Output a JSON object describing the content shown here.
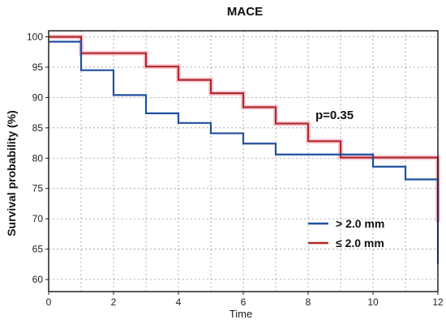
{
  "chart_data": {
    "type": "line",
    "title": "MACE",
    "xlabel": "Time",
    "ylabel": "Survival probability (%)",
    "xlim": [
      0,
      12
    ],
    "ylim": [
      58,
      101
    ],
    "x_ticks": [
      "0",
      "2",
      "4",
      "6",
      "8",
      "10",
      "12"
    ],
    "y_ticks": [
      "60",
      "65",
      "70",
      "75",
      "80",
      "85",
      "90",
      "95",
      "100"
    ],
    "grid": true,
    "annotation": "p=0.35",
    "legend_position": "bottom-right",
    "series": [
      {
        "name": "> 2.0 mm",
        "color": "#1f4fa0",
        "step": true,
        "x": [
          0,
          1,
          2,
          3,
          4,
          5,
          6,
          7,
          9,
          10,
          11,
          12,
          12
        ],
        "y": [
          99.2,
          94.5,
          90.4,
          87.4,
          85.8,
          84.1,
          82.4,
          80.6,
          80.6,
          78.6,
          76.5,
          76.5,
          62.5
        ]
      },
      {
        "name": "≤ 2.0 mm",
        "color": "#b0282a",
        "step": true,
        "x": [
          0,
          1,
          3,
          4,
          5,
          6,
          7,
          8,
          9,
          12,
          12
        ],
        "y": [
          100,
          97.3,
          95.1,
          92.9,
          90.7,
          88.4,
          85.7,
          82.8,
          80.1,
          80.1,
          69.5
        ]
      }
    ]
  }
}
